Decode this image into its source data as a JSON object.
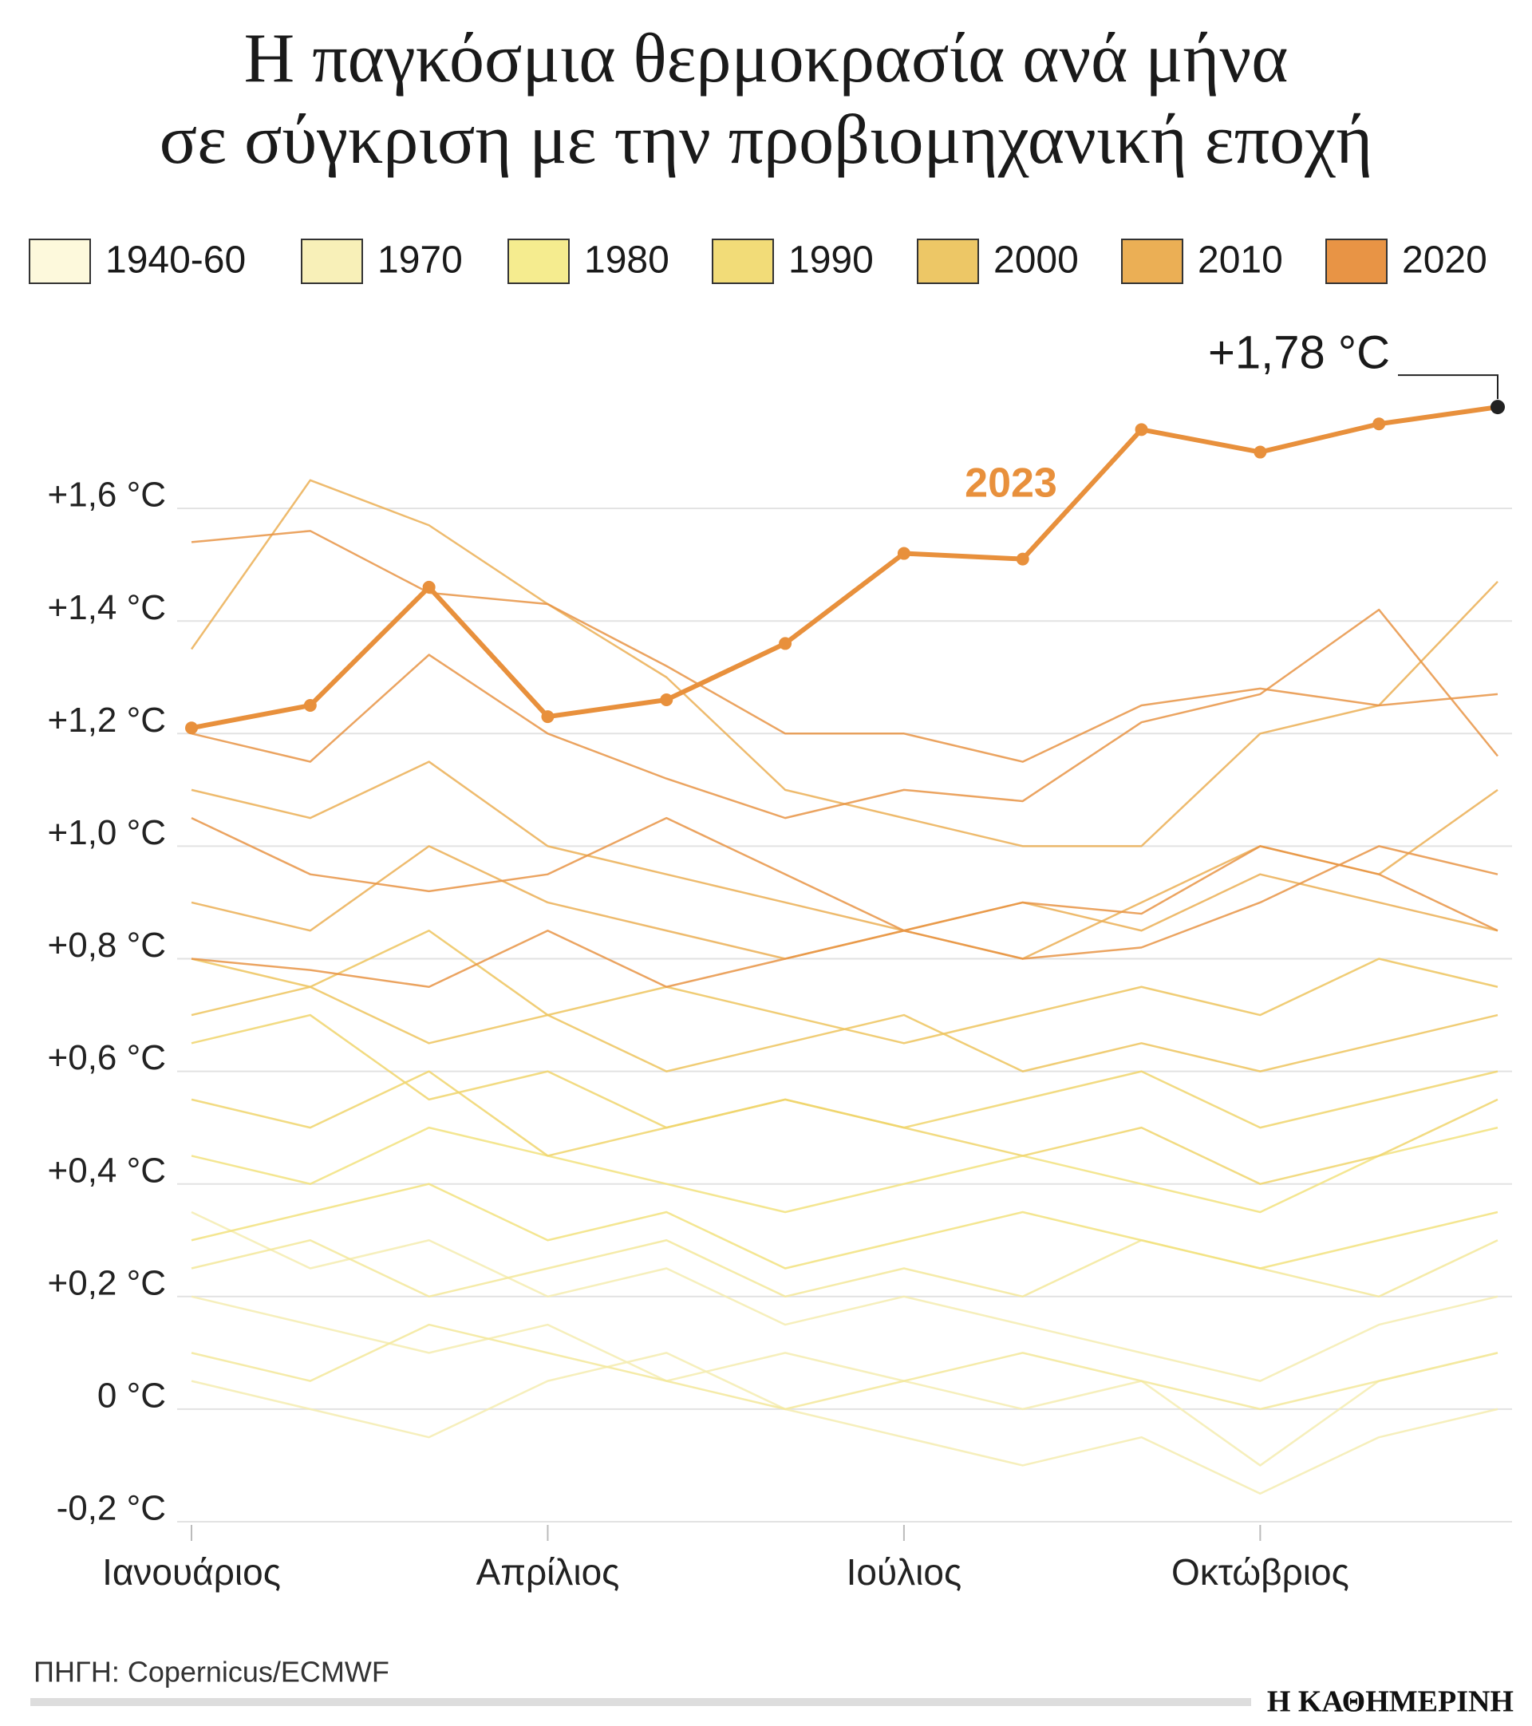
{
  "chart_data": {
    "type": "line",
    "title": [
      "Η παγκόσμια θερμοκρασία ανά μήνα",
      "σε σύγκριση με την προβιομηχανική εποχή"
    ],
    "legend": [
      {
        "label": "1940-60",
        "color": "#fdf9dc"
      },
      {
        "label": "1970",
        "color": "#f8f0b8"
      },
      {
        "label": "1980",
        "color": "#f5ec8f"
      },
      {
        "label": "1990",
        "color": "#f2dc78"
      },
      {
        "label": "2000",
        "color": "#edc766"
      },
      {
        "label": "2010",
        "color": "#ebaf55"
      },
      {
        "label": "2020",
        "color": "#e89445"
      }
    ],
    "categories": [
      "Ιανουάριος",
      null,
      null,
      "Απρίλιος",
      null,
      null,
      "Ιούλιος",
      null,
      null,
      "Οκτώβριος",
      null,
      null
    ],
    "ylim": [
      -0.2,
      1.8
    ],
    "yticks": [
      {
        "value": -0.2,
        "label": "-0,2 °C"
      },
      {
        "value": 0,
        "label": "0 °C"
      },
      {
        "value": 0.2,
        "label": "+0,2 °C"
      },
      {
        "value": 0.4,
        "label": "+0,4 °C"
      },
      {
        "value": 0.6,
        "label": "+0,6 °C"
      },
      {
        "value": 0.8,
        "label": "+0,8 °C"
      },
      {
        "value": 1.0,
        "label": "+1,0 °C"
      },
      {
        "value": 1.2,
        "label": "+1,2 °C"
      },
      {
        "value": 1.4,
        "label": "+1,4 °C"
      },
      {
        "value": 1.6,
        "label": "+1,6 °C"
      }
    ],
    "grid": true,
    "series": [
      {
        "color": "#f5ecb0",
        "values": [
          0.05,
          0.0,
          -0.05,
          0.05,
          0.1,
          0.0,
          -0.05,
          -0.1,
          -0.05,
          -0.15,
          -0.05,
          0.0
        ]
      },
      {
        "color": "#f5ecb0",
        "values": [
          0.2,
          0.15,
          0.1,
          0.15,
          0.05,
          0.1,
          0.05,
          0.0,
          0.05,
          -0.1,
          0.05,
          0.1
        ]
      },
      {
        "color": "#f5ecb0",
        "values": [
          0.35,
          0.25,
          0.3,
          0.2,
          0.25,
          0.15,
          0.2,
          0.15,
          0.1,
          0.05,
          0.15,
          0.2
        ]
      },
      {
        "color": "#f3e89a",
        "values": [
          0.1,
          0.05,
          0.15,
          0.1,
          0.05,
          0.0,
          0.05,
          0.1,
          0.05,
          0.0,
          0.05,
          0.1
        ]
      },
      {
        "color": "#f3e89a",
        "values": [
          0.25,
          0.3,
          0.2,
          0.25,
          0.3,
          0.2,
          0.25,
          0.2,
          0.3,
          0.25,
          0.2,
          0.3
        ]
      },
      {
        "color": "#f2e27e",
        "values": [
          0.3,
          0.35,
          0.4,
          0.3,
          0.35,
          0.25,
          0.3,
          0.35,
          0.3,
          0.25,
          0.3,
          0.35
        ]
      },
      {
        "color": "#f2e27e",
        "values": [
          0.45,
          0.4,
          0.5,
          0.45,
          0.4,
          0.35,
          0.4,
          0.45,
          0.4,
          0.35,
          0.45,
          0.5
        ]
      },
      {
        "color": "#f0d56c",
        "values": [
          0.55,
          0.5,
          0.6,
          0.45,
          0.5,
          0.55,
          0.5,
          0.45,
          0.5,
          0.4,
          0.45,
          0.55
        ]
      },
      {
        "color": "#f0d56c",
        "values": [
          0.65,
          0.7,
          0.55,
          0.6,
          0.5,
          0.55,
          0.5,
          0.55,
          0.6,
          0.5,
          0.55,
          0.6
        ]
      },
      {
        "color": "#edc45e",
        "values": [
          0.7,
          0.75,
          0.65,
          0.7,
          0.6,
          0.65,
          0.7,
          0.6,
          0.65,
          0.6,
          0.65,
          0.7
        ]
      },
      {
        "color": "#edc45e",
        "values": [
          0.8,
          0.75,
          0.85,
          0.7,
          0.75,
          0.7,
          0.65,
          0.7,
          0.75,
          0.7,
          0.8,
          0.75
        ]
      },
      {
        "color": "#ebaf55",
        "values": [
          0.9,
          0.85,
          1.0,
          0.9,
          0.85,
          0.8,
          0.85,
          0.9,
          0.85,
          0.95,
          0.9,
          0.85
        ]
      },
      {
        "color": "#ebaf55",
        "values": [
          1.1,
          1.05,
          1.15,
          1.0,
          0.95,
          0.9,
          0.85,
          0.8,
          0.9,
          1.0,
          0.95,
          1.1
        ]
      },
      {
        "color": "#ebaf55",
        "values": [
          1.35,
          1.65,
          1.57,
          1.43,
          1.3,
          1.1,
          1.05,
          1.0,
          1.0,
          1.2,
          1.25,
          1.47
        ]
      },
      {
        "color": "#e89445",
        "values": [
          1.54,
          1.56,
          1.45,
          1.43,
          1.32,
          1.2,
          1.2,
          1.15,
          1.25,
          1.28,
          1.25,
          1.27
        ]
      },
      {
        "color": "#e89445",
        "values": [
          1.2,
          1.15,
          1.34,
          1.2,
          1.12,
          1.05,
          1.1,
          1.08,
          1.22,
          1.27,
          1.42,
          1.16
        ]
      },
      {
        "color": "#e89445",
        "values": [
          1.05,
          0.95,
          0.92,
          0.95,
          1.05,
          0.95,
          0.85,
          0.8,
          0.82,
          0.9,
          1.0,
          0.95
        ]
      },
      {
        "color": "#e89445",
        "values": [
          0.8,
          0.78,
          0.75,
          0.85,
          0.75,
          0.8,
          0.85,
          0.9,
          0.88,
          1.0,
          0.95,
          0.85
        ]
      },
      {
        "name": "2023",
        "color": "#e8903c",
        "highlight": true,
        "values": [
          1.21,
          1.25,
          1.46,
          1.23,
          1.26,
          1.36,
          1.52,
          1.51,
          1.74,
          1.7,
          1.75,
          1.78
        ],
        "value_labels": [
          null,
          null,
          null,
          null,
          null,
          null,
          null,
          null,
          null,
          null,
          null,
          "+1,78 °C"
        ]
      }
    ],
    "source": "ΠΗΓΗ: Copernicus/ECMWF",
    "brand": "Η ΚΑΘΗΜΕΡΙΝΗ"
  }
}
